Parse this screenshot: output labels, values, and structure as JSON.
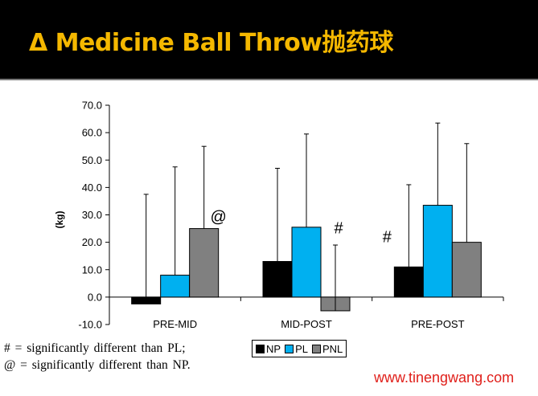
{
  "title": "Δ Medicine Ball Throw抛药球",
  "footnote": "# = significantly  different  than PL; @ = significantly  different than NP.",
  "website": "www.tinengwang.com",
  "colors": {
    "title": "#f5b800",
    "NP": "#000000",
    "PL": "#00b0f0",
    "PNL": "#808080",
    "website": "#e0201b"
  },
  "chart_data": {
    "type": "bar",
    "ylabel": "(kg)",
    "ylim": [
      -10,
      70
    ],
    "yticks": [
      "70.0",
      "60.0",
      "50.0",
      "40.0",
      "30.0",
      "20.0",
      "10.0",
      "0.0",
      "-10.0"
    ],
    "categories": [
      "PRE-MID",
      "MID-POST",
      "PRE-POST"
    ],
    "series": [
      {
        "name": "NP",
        "values": [
          -2.5,
          13,
          11
        ],
        "error": [
          40,
          34,
          30
        ]
      },
      {
        "name": "PL",
        "values": [
          8,
          25.5,
          33.5
        ],
        "error": [
          39.5,
          34,
          30
        ]
      },
      {
        "name": "PNL",
        "values": [
          25,
          -5,
          20
        ],
        "error": [
          30,
          24,
          36
        ]
      }
    ],
    "annotations": [
      {
        "text": "@",
        "category": 0,
        "series": 2
      },
      {
        "text": "#",
        "category": 1,
        "series": 2
      },
      {
        "text": "#",
        "category": 2,
        "series": 0
      }
    ],
    "legend_position": "bottom"
  }
}
